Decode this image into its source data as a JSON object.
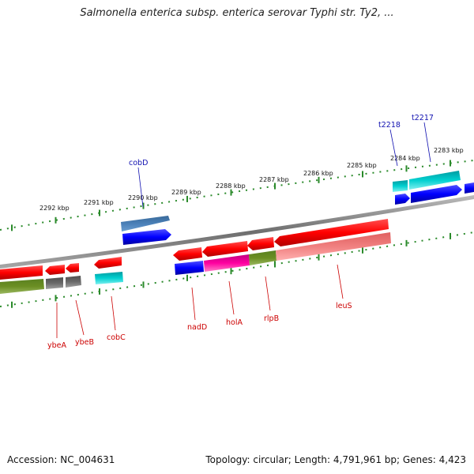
{
  "title": "Salmonella enterica subsp. enterica serovar Typhi str. Ty2, ...",
  "footer": {
    "accession": "Accession: NC_004631",
    "topology": "Topology: circular; Length: 4,791,961 bp; Genes: 4,423"
  },
  "colors": {
    "backbone": "#808080",
    "tick": "#2a8a2a",
    "label_red": "#cc0000",
    "label_blue": "#1010b0"
  },
  "scale": {
    "kbp_labels": [
      "2292 kbp",
      "2291 kbp",
      "2290 kbp",
      "2289 kbp",
      "2288 kbp",
      "2287 kbp",
      "2286 kbp",
      "2285 kbp",
      "2284 kbp",
      "2283 kbp"
    ]
  },
  "gene_labels": [
    {
      "id": "ybeA",
      "text": "ybeA",
      "color": "#cc0000"
    },
    {
      "id": "ybeB",
      "text": "ybeB",
      "color": "#cc0000"
    },
    {
      "id": "cobC",
      "text": "cobC",
      "color": "#cc0000"
    },
    {
      "id": "nadD",
      "text": "nadD",
      "color": "#cc0000"
    },
    {
      "id": "holA",
      "text": "holA",
      "color": "#cc0000"
    },
    {
      "id": "rlpB",
      "text": "rlpB",
      "color": "#cc0000"
    },
    {
      "id": "leuS",
      "text": "leuS",
      "color": "#cc0000"
    },
    {
      "id": "cobD",
      "text": "cobD",
      "color": "#1010b0"
    },
    {
      "id": "t2218",
      "text": "t2218",
      "color": "#1010b0"
    },
    {
      "id": "t2217",
      "text": "t2217",
      "color": "#1010b0"
    }
  ]
}
